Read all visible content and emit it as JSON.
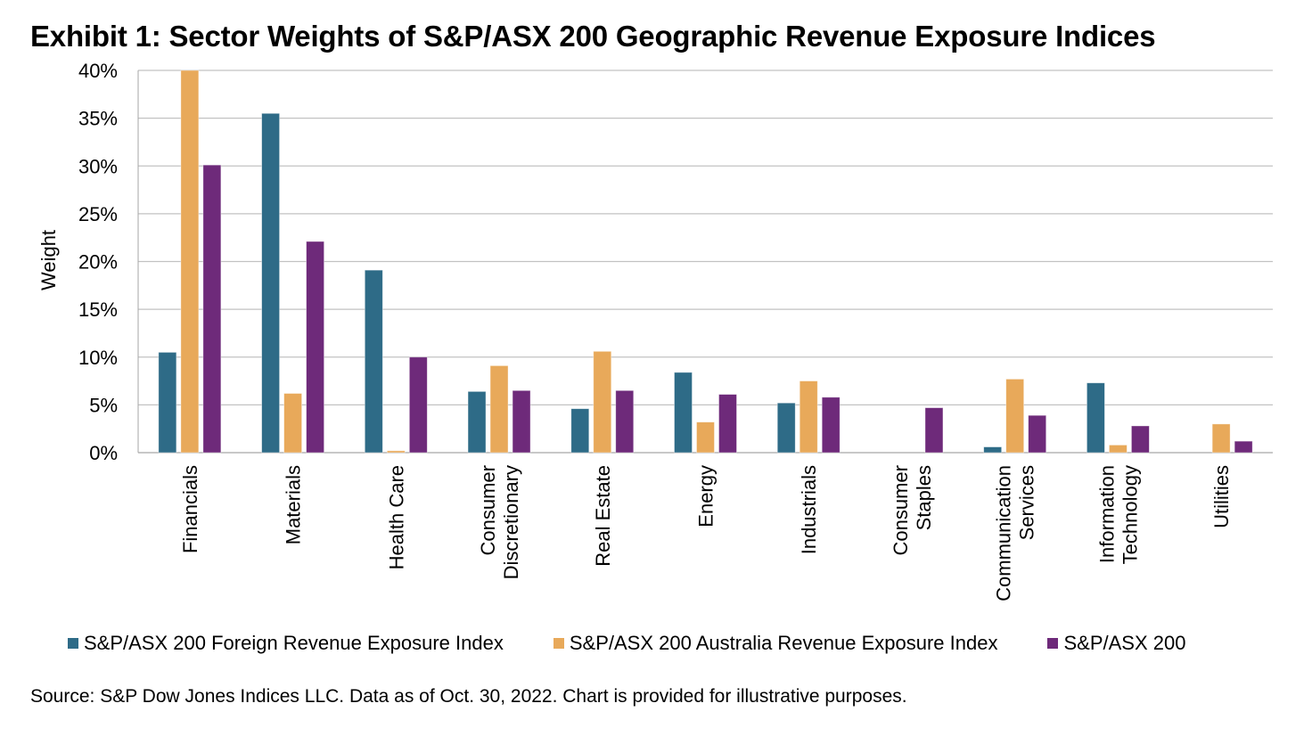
{
  "title": "Exhibit 1: Sector Weights of S&P/ASX 200 Geographic Revenue Exposure Indices",
  "source": "Source: S&P Dow Jones Indices LLC. Data as of Oct. 30, 2022. Chart is provided for illustrative purposes.",
  "chart_data": {
    "type": "bar",
    "title": "Exhibit 1: Sector Weights of S&P/ASX 200 Geographic Revenue Exposure Indices",
    "xlabel": "",
    "ylabel": "Weight",
    "ylim": [
      0,
      40
    ],
    "yticks": [
      0,
      5,
      10,
      15,
      20,
      25,
      30,
      35,
      40
    ],
    "ytick_labels": [
      "0%",
      "5%",
      "10%",
      "15%",
      "20%",
      "25%",
      "30%",
      "35%",
      "40%"
    ],
    "grid": true,
    "legend_position": "bottom",
    "categories": [
      [
        "Financials"
      ],
      [
        "Materials"
      ],
      [
        "Health Care"
      ],
      [
        "Consumer",
        "Discretionary"
      ],
      [
        "Real Estate"
      ],
      [
        "Energy"
      ],
      [
        "Industrials"
      ],
      [
        "Consumer",
        "Staples"
      ],
      [
        "Communication",
        "Services"
      ],
      [
        "Information",
        "Technology"
      ],
      [
        "Utilities"
      ]
    ],
    "series": [
      {
        "name": "S&P/ASX 200 Foreign Revenue Exposure Index",
        "color": "#2e6b87",
        "values": [
          10.5,
          35.5,
          19.1,
          6.4,
          4.6,
          8.4,
          5.2,
          0,
          0.6,
          7.3,
          0
        ]
      },
      {
        "name": "S&P/ASX 200 Australia Revenue Exposure Index",
        "color": "#e8a95a",
        "values": [
          40.0,
          6.2,
          0.2,
          9.1,
          10.6,
          3.2,
          7.5,
          0,
          7.7,
          0.8,
          3.0
        ]
      },
      {
        "name": "S&P/ASX 200",
        "color": "#6e2a7a",
        "values": [
          30.1,
          22.1,
          10.0,
          6.5,
          6.5,
          6.1,
          5.8,
          4.7,
          3.9,
          2.8,
          1.2
        ]
      }
    ]
  }
}
